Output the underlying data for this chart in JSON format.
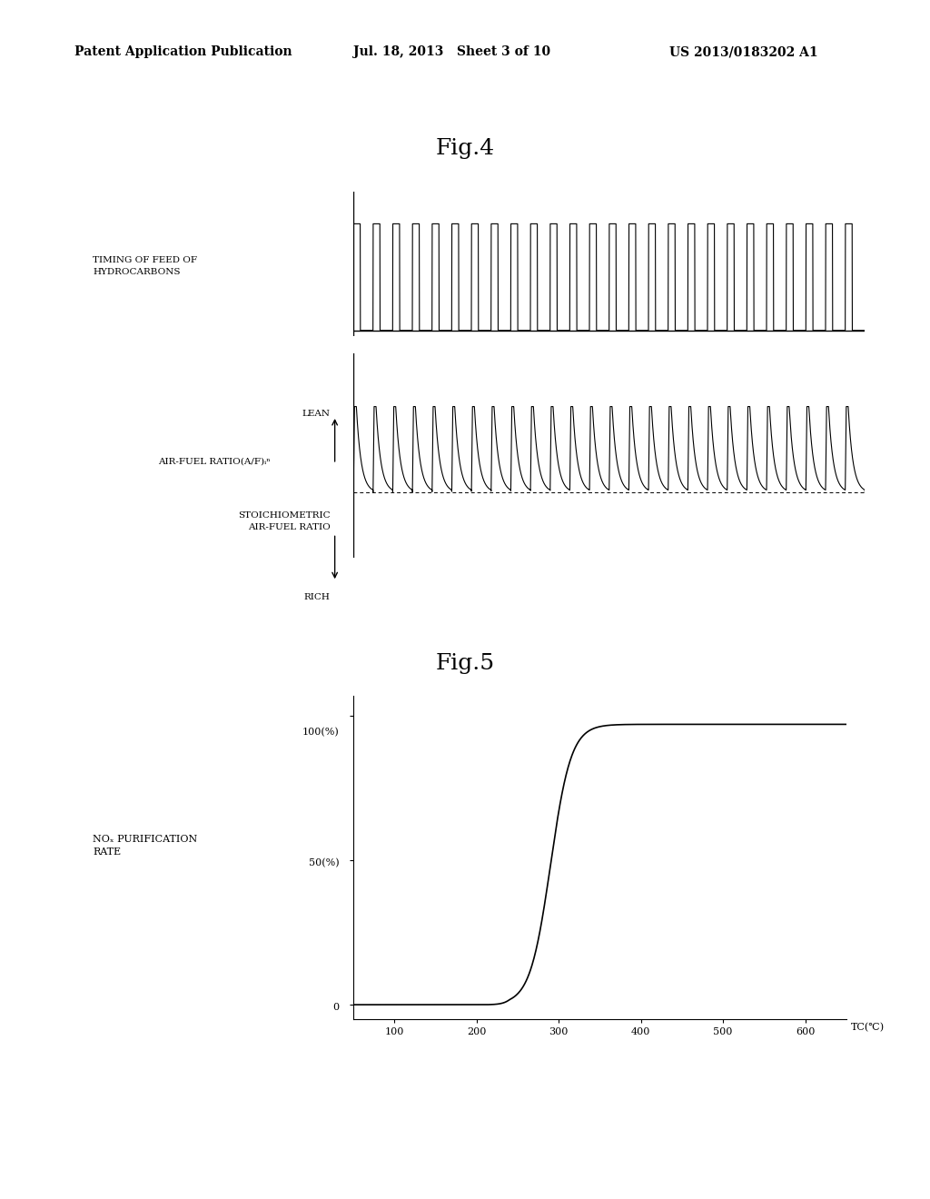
{
  "bg_color": "#ffffff",
  "header_left": "Patent Application Publication",
  "header_mid": "Jul. 18, 2013   Sheet 3 of 10",
  "header_right": "US 2013/0183202 A1",
  "fig4_title": "Fig.4",
  "fig5_title": "Fig.5",
  "fig4_label1": "TIMING OF FEED OF\nHYDROCARBONS",
  "fig4_label2_lean": "LEAN",
  "fig4_label2_main": "AIR-FUEL RATIO(A/F)ᵢⁿ",
  "fig4_label2_stoich": "STOICHIOMETRIC\nAIR-FUEL RATIO",
  "fig4_label2_rich": "RICH",
  "fig5_ylabel": "NOₓ PURIFICATION\nRATE",
  "fig5_xlabel": "TC(℃)",
  "fig5_ytick0": "0",
  "fig5_ytick50": "50(%)",
  "fig5_ytick100": "100(%)",
  "fig5_xticks": [
    100,
    200,
    300,
    400,
    500,
    600
  ],
  "num_pulses": 26,
  "pulse_period": 1.0,
  "pulse_duty": 0.35,
  "af_period": 1.0,
  "af_lean_level": 0.75,
  "af_stoich_level": 0.18,
  "stoich_line_level": 0.18
}
